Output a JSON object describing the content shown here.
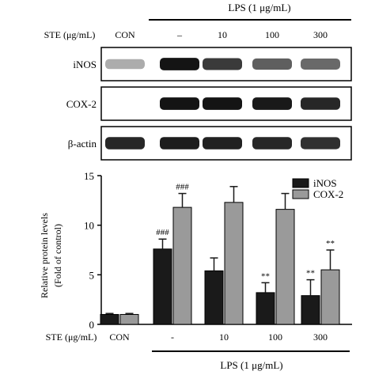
{
  "colors": {
    "inos": "#1a1a1a",
    "cox2": "#9a9a9a",
    "blot_bg": "#ffffff"
  },
  "blot": {
    "lps_header": "LPS (1 μg/mL)",
    "ste_label": "STE (μg/mL)",
    "lanes": [
      "CON",
      "–",
      "10",
      "100",
      "300"
    ],
    "rows": [
      {
        "label": "iNOS",
        "intensity": [
          0.15,
          0.95,
          0.75,
          0.55,
          0.5
        ]
      },
      {
        "label": "COX-2",
        "intensity": [
          0.0,
          0.95,
          0.95,
          0.92,
          0.85
        ]
      },
      {
        "label": "β-actin",
        "intensity": [
          0.85,
          0.9,
          0.88,
          0.85,
          0.8
        ]
      }
    ]
  },
  "chart_data": {
    "type": "bar",
    "ylabel": [
      "Relative protein levels",
      "(Fold of control)"
    ],
    "ylim": [
      0,
      15
    ],
    "yticks": [
      0,
      5,
      10,
      15
    ],
    "categories": [
      "CON",
      "-",
      "10",
      "100",
      "300"
    ],
    "ste_label": "STE (μg/mL)",
    "xgroup_label": "LPS (1 μg/mL)",
    "legend_position": "top-right",
    "series": [
      {
        "name": "iNOS",
        "values": [
          1.0,
          7.6,
          5.4,
          3.2,
          2.9
        ],
        "errors": [
          0.1,
          1.0,
          1.3,
          1.0,
          1.6
        ],
        "annotations": [
          "",
          "###",
          "",
          "**",
          "**"
        ]
      },
      {
        "name": "COX-2",
        "values": [
          1.0,
          11.8,
          12.3,
          11.6,
          5.5
        ],
        "errors": [
          0.1,
          1.4,
          1.6,
          1.6,
          2.0
        ],
        "annotations": [
          "",
          "###",
          "",
          "",
          "**"
        ]
      }
    ]
  }
}
